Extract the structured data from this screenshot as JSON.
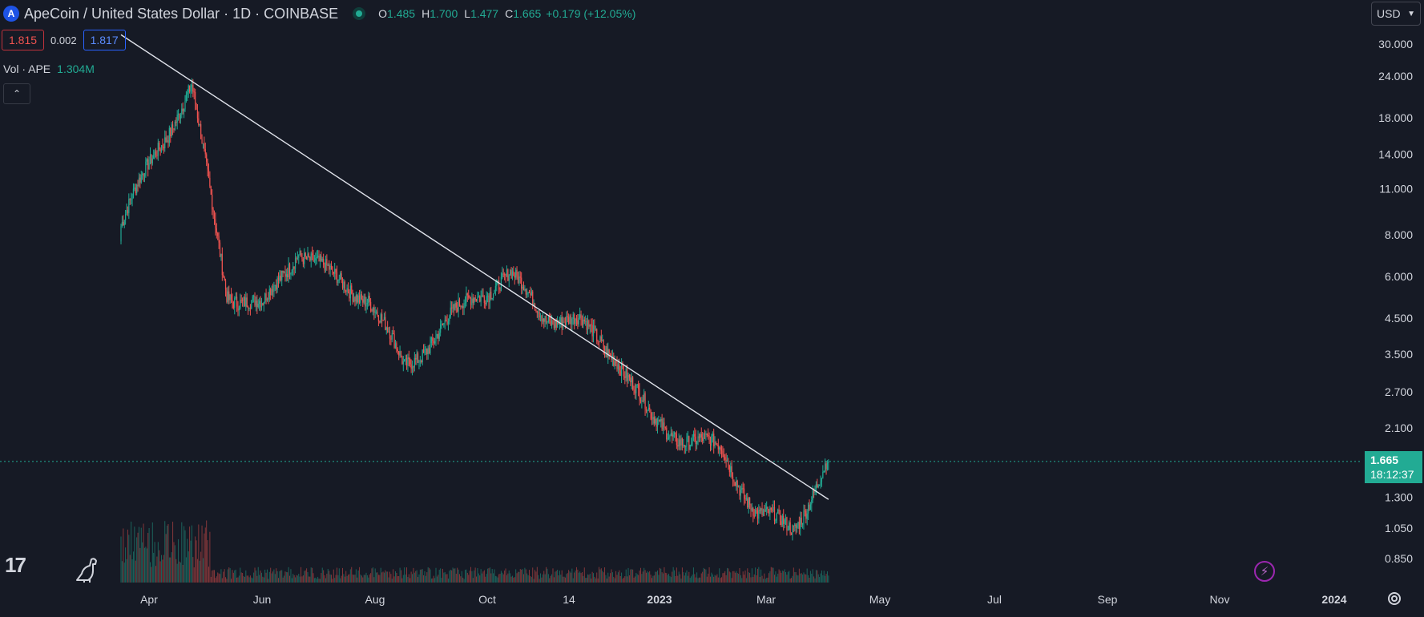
{
  "header": {
    "symbol_icon": "apecoin-logo-icon",
    "title": "ApeCoin / United States Dollar · 1D · COINBASE",
    "ohlc": {
      "o_label": "O",
      "o": "1.485",
      "h_label": "H",
      "h": "1.700",
      "l_label": "L",
      "l": "1.477",
      "c_label": "C",
      "c": "1.665",
      "change": "+0.179 (+12.05%)"
    },
    "sell_price": "1.815",
    "spread": "0.002",
    "buy_price": "1.817",
    "volume_label": "Vol · APE",
    "volume_value": "1.304M",
    "currency": "USD"
  },
  "last_price": {
    "price": "1.665",
    "countdown": "18:12:37"
  },
  "colors": {
    "background": "#161a25",
    "up": "#22ab94",
    "down": "#ef5350",
    "trendline": "#e0e3eb",
    "axis_text": "#d1d4dc"
  },
  "chart_data": {
    "type": "candlestick",
    "title": "ApeCoin / United States Dollar · 1D · COINBASE",
    "scale": "log",
    "y_ticks": [
      "30.000",
      "24.000",
      "18.000",
      "14.000",
      "11.000",
      "8.000",
      "6.000",
      "4.500",
      "3.500",
      "2.700",
      "2.100",
      "1.300",
      "1.050",
      "0.850"
    ],
    "x_ticks": [
      "Apr",
      "Jun",
      "Aug",
      "Oct",
      "14",
      "2023",
      "Mar",
      "May",
      "Jul",
      "Sep",
      "Nov",
      "2024"
    ],
    "ylim": [
      0.78,
      34
    ],
    "series": [
      {
        "name": "price",
        "x": [
          "Mar",
          "Apr",
          "May",
          "Jun",
          "Jul",
          "Aug",
          "Sep",
          "Oct",
          "Nov",
          "Dec",
          "Jan",
          "Feb",
          "Mar",
          "Apr",
          "May",
          "Jun",
          "Jul",
          "Aug",
          "Sep",
          "Oct",
          "Nov"
        ],
        "close": [
          8.5,
          14.5,
          22.0,
          5.4,
          4.8,
          7.3,
          5.9,
          5.2,
          3.2,
          4.1,
          5.3,
          6.0,
          4.6,
          4.3,
          3.5,
          2.2,
          1.95,
          1.8,
          1.15,
          1.05,
          1.665
        ]
      }
    ],
    "trendline": {
      "from": {
        "x": "2022-03-17",
        "y": 32.0
      },
      "to": {
        "x": "2023-12-06",
        "y": 1.28
      }
    },
    "current_price_line": 1.665,
    "volume_label": "Vol · APE",
    "volume_value": "1.304M"
  }
}
